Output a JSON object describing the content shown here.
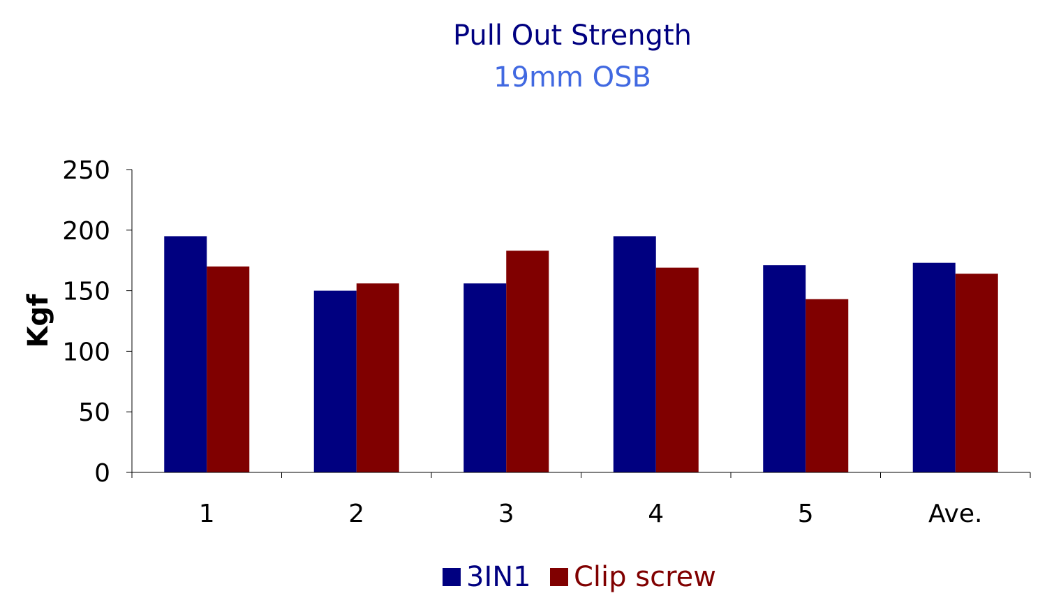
{
  "chart_data": {
    "type": "bar",
    "title": "Pull Out Strength",
    "subtitle": "19mm OSB",
    "ylabel": "Kgf",
    "xlabel": "",
    "categories": [
      "1",
      "2",
      "3",
      "4",
      "5",
      "Ave."
    ],
    "series": [
      {
        "name": "3IN1",
        "color": "#000080",
        "values": [
          195,
          150,
          156,
          195,
          171,
          173
        ]
      },
      {
        "name": "Clip screw",
        "color": "#800000",
        "values": [
          170,
          156,
          183,
          169,
          143,
          164
        ]
      }
    ],
    "ylim": [
      0,
      250
    ],
    "yticks": [
      "0",
      "50",
      "100",
      "150",
      "200",
      "250"
    ],
    "grid": false,
    "legend_position": "bottom-center",
    "colors": {
      "title": "#000080",
      "subtitle": "#4169E1"
    }
  }
}
